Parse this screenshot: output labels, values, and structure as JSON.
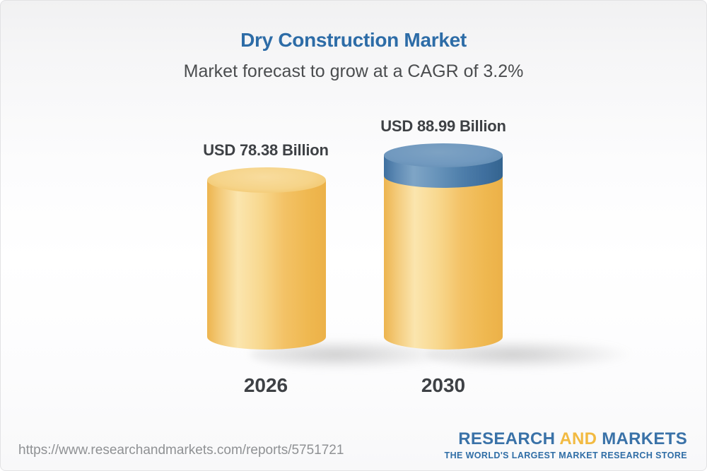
{
  "header": {
    "title": "Dry Construction Market",
    "subtitle": "Market forecast to grow at a CAGR of 3.2%"
  },
  "chart_data": {
    "type": "bar",
    "subtype": "3d-cylinder",
    "title": "Dry Construction Market",
    "subtitle": "Market forecast to grow at a CAGR of 3.2%",
    "cagr_percent": 3.2,
    "unit": "USD Billion",
    "categories": [
      "2026",
      "2030"
    ],
    "values": [
      78.38,
      88.99
    ],
    "value_labels": [
      "USD 78.38 Billion",
      "USD 88.99 Billion"
    ],
    "growth_cap_on": "2030",
    "grid": false,
    "legend_position": "none",
    "colors": {
      "base_bar": "#F3C468",
      "growth_cap": "#5E8BB4",
      "title": "#2D6CA7",
      "subtitle": "#4B4D4F",
      "labels": "#3E4145"
    }
  },
  "bars": [
    {
      "year": "2026",
      "value_label": "USD 78.38 Billion"
    },
    {
      "year": "2030",
      "value_label": "USD 88.99 Billion"
    }
  ],
  "footer": {
    "url": "https://www.researchandmarkets.com/reports/5751721",
    "logo": {
      "research": "RESEARCH",
      "and": "AND",
      "markets": "MARKETS",
      "tagline": "THE WORLD'S LARGEST MARKET RESEARCH STORE"
    }
  }
}
